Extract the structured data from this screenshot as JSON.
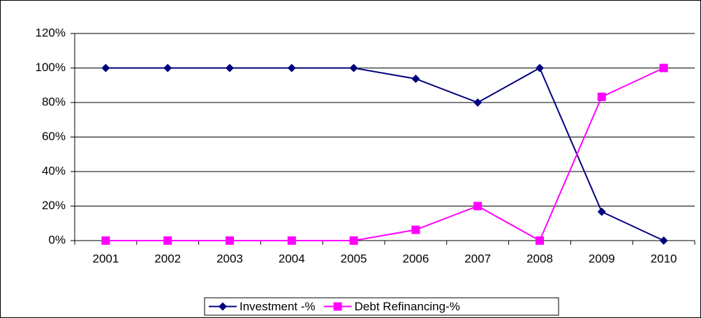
{
  "chart_data": {
    "type": "line",
    "categories": [
      "2001",
      "2002",
      "2003",
      "2004",
      "2005",
      "2006",
      "2007",
      "2008",
      "2009",
      "2010"
    ],
    "series": [
      {
        "name": "Investment -%",
        "color": "#000080",
        "marker": "diamond",
        "values": [
          100,
          100,
          100,
          100,
          100,
          93.75,
          80,
          100,
          16.7,
          0
        ]
      },
      {
        "name": "Debt Refinancing-%",
        "color": "#ff00ff",
        "marker": "square",
        "values": [
          0,
          0,
          0,
          0,
          0,
          6.25,
          20,
          0,
          83.3,
          100
        ]
      }
    ],
    "ylim": [
      0,
      120
    ],
    "yticks": [
      {
        "value": 0,
        "label": "0%"
      },
      {
        "value": 20,
        "label": "20%"
      },
      {
        "value": 40,
        "label": "40%"
      },
      {
        "value": 60,
        "label": "60%"
      },
      {
        "value": 80,
        "label": "80%"
      },
      {
        "value": 100,
        "label": "100%"
      },
      {
        "value": 120,
        "label": "120%"
      }
    ],
    "grid": true,
    "legend": "bottom"
  }
}
